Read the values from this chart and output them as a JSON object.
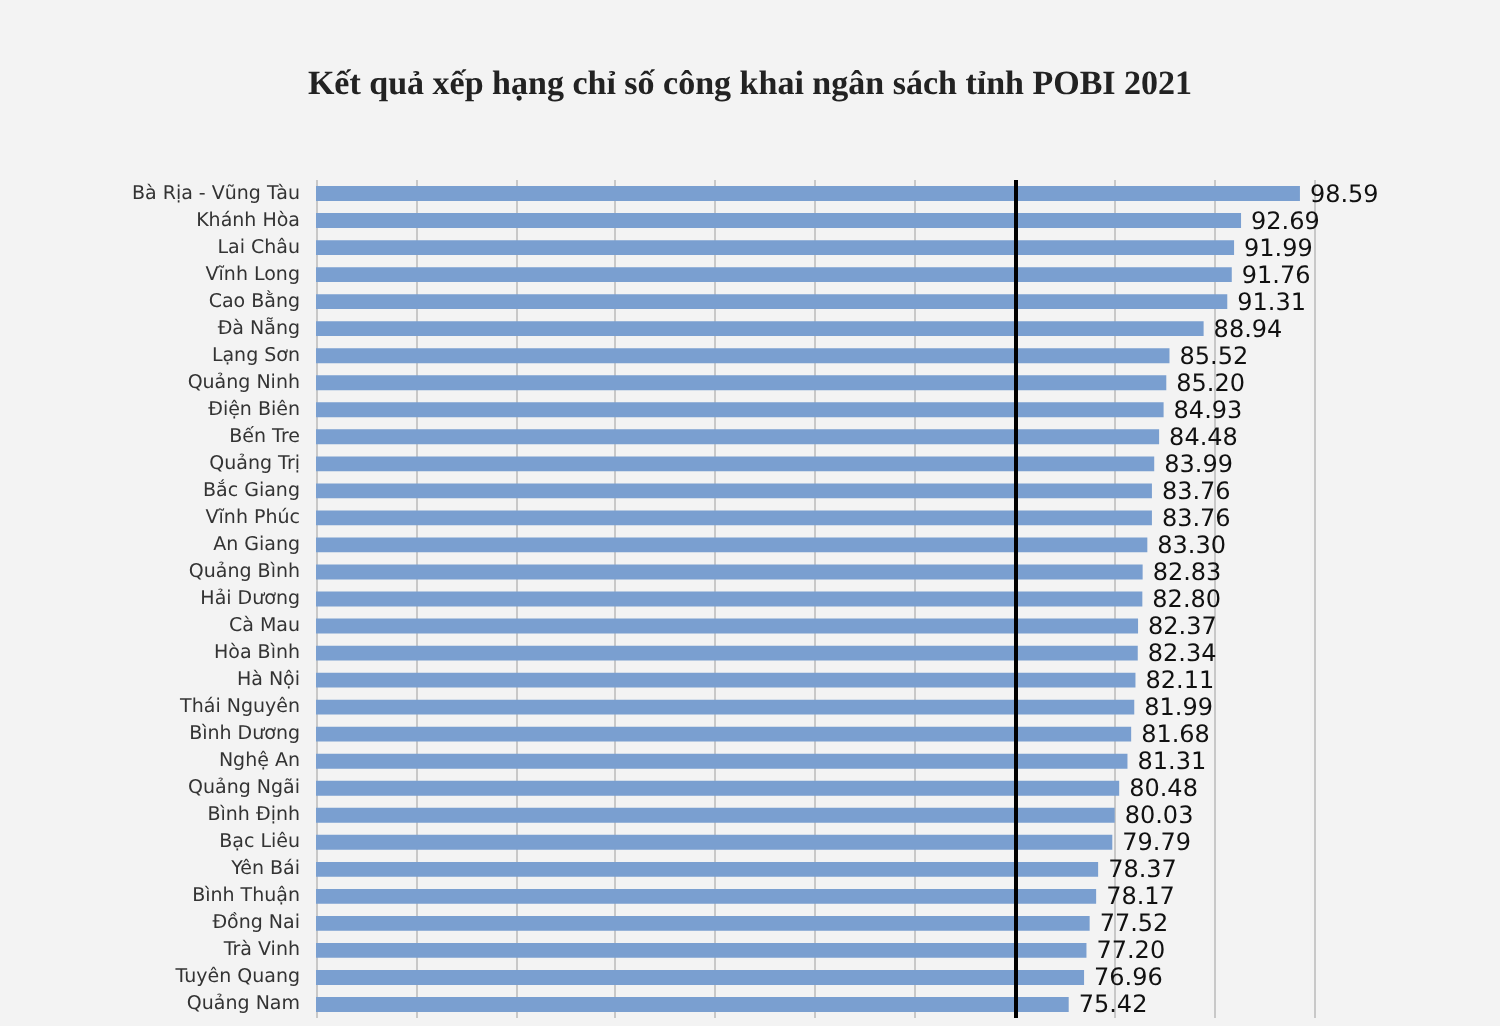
{
  "chart_data": {
    "type": "bar",
    "orientation": "horizontal",
    "title": "Kết quả xếp hạng chỉ số công khai ngân sách tỉnh POBI 2021",
    "categories": [
      "Bà Rịa - Vũng Tàu",
      "Khánh Hòa",
      "Lai Châu",
      "Vĩnh Long",
      "Cao Bằng",
      "Đà Nẵng",
      "Lạng Sơn",
      "Quảng Ninh",
      "Điện Biên",
      "Bến Tre",
      "Quảng Trị",
      "Bắc Giang",
      "Vĩnh Phúc",
      "An Giang",
      "Quảng Bình",
      "Hải Dương",
      "Cà Mau",
      "Hòa Bình",
      "Hà Nội",
      "Thái Nguyên",
      "Bình Dương",
      "Nghệ An",
      "Quảng Ngãi",
      "Bình Định",
      "Bạc Liêu",
      "Yên Bái",
      "Bình Thuận",
      "Đồng Nai",
      "Trà Vinh",
      "Tuyên Quang",
      "Quảng Nam"
    ],
    "values": [
      98.59,
      92.69,
      91.99,
      91.76,
      91.31,
      88.94,
      85.52,
      85.2,
      84.93,
      84.48,
      83.99,
      83.76,
      83.76,
      83.3,
      82.83,
      82.8,
      82.37,
      82.34,
      82.11,
      81.99,
      81.68,
      81.31,
      80.48,
      80.03,
      79.79,
      78.37,
      78.17,
      77.52,
      77.2,
      76.96,
      75.42
    ],
    "value_labels": [
      "98.59",
      "92.69",
      "91.99",
      "91.76",
      "91.31",
      "88.94",
      "85.52",
      "85.20",
      "84.93",
      "84.48",
      "83.99",
      "83.76",
      "83.76",
      "83.30",
      "82.83",
      "82.80",
      "82.37",
      "82.34",
      "82.11",
      "81.99",
      "81.68",
      "81.31",
      "80.48",
      "80.03",
      "79.79",
      "78.37",
      "78.17",
      "77.52",
      "77.20",
      "76.96",
      "75.42"
    ],
    "color": "#7a9fd0",
    "xlim": [
      0,
      100
    ],
    "xticks": [
      {
        "value": 0,
        "label": null
      },
      {
        "value": 10,
        "label": null
      },
      {
        "value": 20,
        "label": null
      },
      {
        "value": 30,
        "label": null
      },
      {
        "value": 40,
        "label": null
      },
      {
        "value": 50,
        "label": null
      },
      {
        "value": 60,
        "label": null
      },
      {
        "value": 70,
        "label": null
      },
      {
        "value": 80,
        "label": null
      },
      {
        "value": 90,
        "label": null
      },
      {
        "value": 100,
        "label": null
      }
    ],
    "grid": "x",
    "tick_labels": "y",
    "ref_lines": [
      {
        "axis": "x",
        "value": 70,
        "color": "#000000"
      }
    ]
  }
}
